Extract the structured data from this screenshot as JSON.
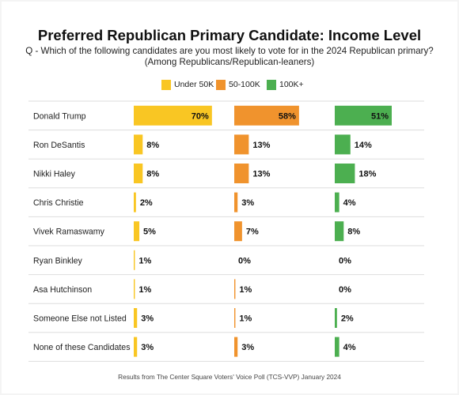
{
  "chart_data": {
    "type": "bar",
    "title": "Preferred Republican Primary Candidate: Income Level",
    "subtitle_lines": [
      "Q - Which of the following candidates are you most likely to vote for in the 2024 Republican primary?",
      "(Among Republicans/Republican-leaners)"
    ],
    "categories": [
      "Donald Trump",
      "Ron DeSantis",
      "Nikki Haley",
      "Chris Christie",
      "Vivek Ramaswamy",
      "Ryan Binkley",
      "Asa Hutchinson",
      "Someone Else not Listed",
      "None of these Candidates"
    ],
    "series": [
      {
        "name": "Under 50K",
        "color": "#F9C623",
        "values": [
          70,
          8,
          8,
          2,
          5,
          1,
          1,
          3,
          3
        ]
      },
      {
        "name": "50-100K",
        "color": "#F0932D",
        "values": [
          58,
          13,
          13,
          3,
          7,
          0,
          1,
          1,
          3
        ]
      },
      {
        "name": "100K+",
        "color": "#4CAF50",
        "values": [
          51,
          14,
          18,
          4,
          8,
          0,
          0,
          2,
          4
        ]
      }
    ],
    "value_suffix": "%",
    "xlim": [
      0,
      85
    ],
    "legend_position": "top-center",
    "grid": false
  },
  "footer": "Results from The Center Square Voters' Voice Poll (TCS-VVP) January 2024"
}
